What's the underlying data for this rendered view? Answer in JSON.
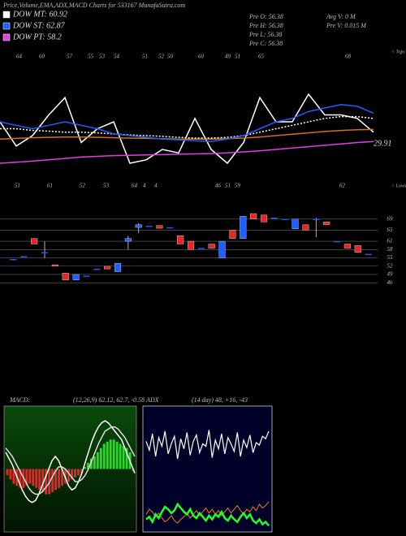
{
  "title": "Price,Volume,EMA,ADX,MACD Charts for 533167 MunafaSutra.com",
  "info": [
    "Pre O: 56.38",
    "Pre H: 56.38",
    "Pre L: 56.38",
    "Pre C: 56.38",
    "Avg V: 0 M",
    "Pre V: 0.015 M"
  ],
  "chart_data": [
    {
      "type": "line",
      "ylim": [
        40,
        80
      ],
      "tops_label": "< Tops",
      "lows_label": "< Lows",
      "annotation": "29.91",
      "top_labels": [
        "64",
        "60",
        "57",
        "55",
        "53",
        "54",
        "51",
        "52",
        "50",
        "60",
        "49",
        "51",
        "65",
        "68"
      ],
      "bottom_labels": [
        "51",
        "61",
        "52",
        "53",
        "64",
        "4",
        "4",
        "46",
        "51",
        "59",
        "62"
      ],
      "series": [
        {
          "color": "#ffffff",
          "values": [
            60,
            53,
            56,
            62,
            67,
            54,
            58,
            60,
            48,
            49,
            52,
            51,
            61,
            52,
            48,
            54,
            67,
            60,
            60,
            68,
            62,
            62,
            61,
            57
          ]
        },
        {
          "color": "#d07020",
          "values": [
            55,
            55.2,
            55.4,
            55.5,
            55.6,
            55.6,
            55.5,
            55.4,
            55.3,
            55.2,
            55.1,
            55,
            55,
            55,
            55.1,
            55.3,
            55.6,
            56,
            56.4,
            56.8,
            57.2,
            57.5,
            57.7,
            57.8
          ]
        },
        {
          "name": "DOW MT: 60.92",
          "color": "#ffffff",
          "dashed": true,
          "values": [
            58,
            58,
            57.5,
            57.3,
            57,
            57,
            56.8,
            56.5,
            56.2,
            56,
            55.8,
            55.5,
            55.3,
            55.3,
            55.5,
            56,
            57,
            58,
            59,
            60,
            61,
            61.5,
            61.5,
            61
          ]
        },
        {
          "name": "DOW ST: 62.87",
          "color": "#1f5fff",
          "values": [
            60,
            59,
            58,
            59,
            60,
            59,
            58,
            56.5,
            56,
            55.5,
            55,
            54.8,
            54.5,
            54.3,
            55,
            56,
            58,
            60,
            61,
            63,
            64,
            65,
            64.5,
            62.5
          ]
        },
        {
          "name": "DOW PT: 58.2",
          "color": "#e040e0",
          "values": [
            48,
            48.3,
            48.6,
            49,
            49.4,
            49.8,
            50,
            50.2,
            50.3,
            50.4,
            50.5,
            50.6,
            50.7,
            50.8,
            51,
            51.3,
            51.6,
            52,
            52.4,
            52.8,
            53.2,
            53.6,
            54,
            54.3
          ]
        }
      ]
    },
    {
      "type": "candlestick",
      "ylim": [
        44,
        71
      ],
      "yticks": [
        69,
        65,
        61,
        58,
        55,
        52,
        49,
        46
      ],
      "up_color": "#1f5fff",
      "down_color": "#ee2222",
      "open": [
        54.5,
        55.5,
        62,
        57,
        52.5,
        49.5,
        47,
        48.5,
        51,
        52,
        50,
        61,
        66,
        66.5,
        66.7,
        66,
        63,
        61,
        58.5,
        60,
        55,
        65,
        62,
        71,
        70.5,
        69.5,
        69,
        65.5,
        67,
        69,
        68,
        61,
        60,
        59.5,
        56.38
      ],
      "high": [
        54.5,
        55.5,
        62,
        61,
        52.5,
        49.5,
        49,
        48.5,
        51,
        52,
        53,
        63,
        67.5,
        66.5,
        66.7,
        66,
        63,
        61,
        58.5,
        60,
        61,
        65,
        70,
        71,
        70.5,
        69.5,
        69,
        69,
        67,
        69.5,
        68,
        61,
        60,
        59.5,
        56.38
      ],
      "low": [
        54.5,
        55.5,
        60,
        55,
        52,
        47,
        47,
        48.5,
        51,
        51,
        50,
        58,
        64,
        66.5,
        65.7,
        66,
        60,
        58,
        58.5,
        58.5,
        55,
        62,
        62,
        69,
        68,
        69.5,
        69,
        65.5,
        65,
        62.5,
        67,
        61,
        58.5,
        57,
        56.38
      ],
      "close": [
        54.5,
        55.5,
        60,
        57,
        52,
        47,
        49,
        48.5,
        51,
        51,
        53,
        62,
        67,
        66.5,
        65.7,
        66,
        60,
        58,
        58.5,
        58.5,
        61,
        62,
        70,
        69,
        68,
        69.5,
        69,
        69,
        65,
        69,
        67,
        61,
        58.5,
        57,
        56.38
      ]
    },
    {
      "type": "macd",
      "label": "MACD:",
      "params": "(12,26,9) 62.12, 62.7, -0.58",
      "ylim": [
        -30,
        30
      ],
      "up_color": "#22dd22",
      "down_color": "#ee2222",
      "histogram": [
        -3,
        -5,
        -7,
        -8,
        -9,
        -9,
        -8,
        -7,
        -8,
        -9,
        -10,
        -11,
        -12,
        -12,
        -11,
        -10,
        -9,
        -8,
        -7,
        -6,
        -5,
        -4,
        -3,
        -2,
        1,
        3,
        5,
        6,
        8,
        10,
        12,
        13,
        14,
        14,
        13,
        12,
        11,
        10,
        8,
        -1
      ],
      "series": [
        {
          "color": "#ffffff",
          "values": [
            8,
            5,
            2,
            -2,
            -6,
            -10,
            -13,
            -15,
            -16,
            -15,
            -12,
            -8,
            -4,
            0,
            4,
            6,
            4,
            0,
            -4,
            -8,
            -10,
            -9,
            -6,
            -2,
            3,
            8,
            13,
            17,
            20,
            22,
            23,
            22,
            20,
            18,
            16,
            14,
            10,
            6,
            2,
            -2
          ]
        },
        {
          "color": "#dddddd",
          "values": [
            10,
            8,
            6,
            3,
            0,
            -3,
            -6,
            -9,
            -11,
            -12,
            -12,
            -11,
            -9,
            -7,
            -4,
            -1,
            1,
            1,
            0,
            -2,
            -4,
            -6,
            -6,
            -5,
            -3,
            0,
            4,
            8,
            12,
            15,
            18,
            19,
            20,
            20,
            19,
            17,
            15,
            12,
            9,
            6
          ]
        }
      ]
    },
    {
      "type": "adx",
      "label": "ADX",
      "params": "(14 day) 48, +16, -43",
      "ylim": [
        0,
        100
      ],
      "series": [
        {
          "color": "#ffffff",
          "width": 1.2,
          "values": [
            72,
            65,
            78,
            60,
            75,
            68,
            80,
            62,
            70,
            76,
            58,
            74,
            66,
            79,
            61,
            72,
            77,
            63,
            70,
            68,
            81,
            59,
            73,
            66,
            78,
            62,
            75,
            70,
            64,
            79,
            60,
            73,
            67,
            77,
            63,
            71,
            69,
            76,
            74,
            80
          ]
        },
        {
          "color": "#e08020",
          "width": 1,
          "values": [
            14,
            18,
            16,
            12,
            15,
            11,
            8,
            10,
            13,
            9,
            7,
            10,
            12,
            15,
            11,
            14,
            17,
            13,
            16,
            19,
            15,
            18,
            14,
            17,
            13,
            16,
            19,
            15,
            18,
            21,
            17,
            14,
            18,
            16,
            20,
            17,
            22,
            19,
            21,
            24
          ]
        },
        {
          "color": "#22ff22",
          "width": 2.5,
          "values": [
            10,
            12,
            8,
            14,
            11,
            16,
            20,
            18,
            15,
            17,
            22,
            19,
            16,
            14,
            18,
            13,
            11,
            15,
            12,
            9,
            13,
            10,
            14,
            12,
            16,
            11,
            9,
            13,
            10,
            8,
            12,
            15,
            11,
            14,
            9,
            7,
            10,
            6,
            8,
            5
          ]
        }
      ]
    }
  ]
}
